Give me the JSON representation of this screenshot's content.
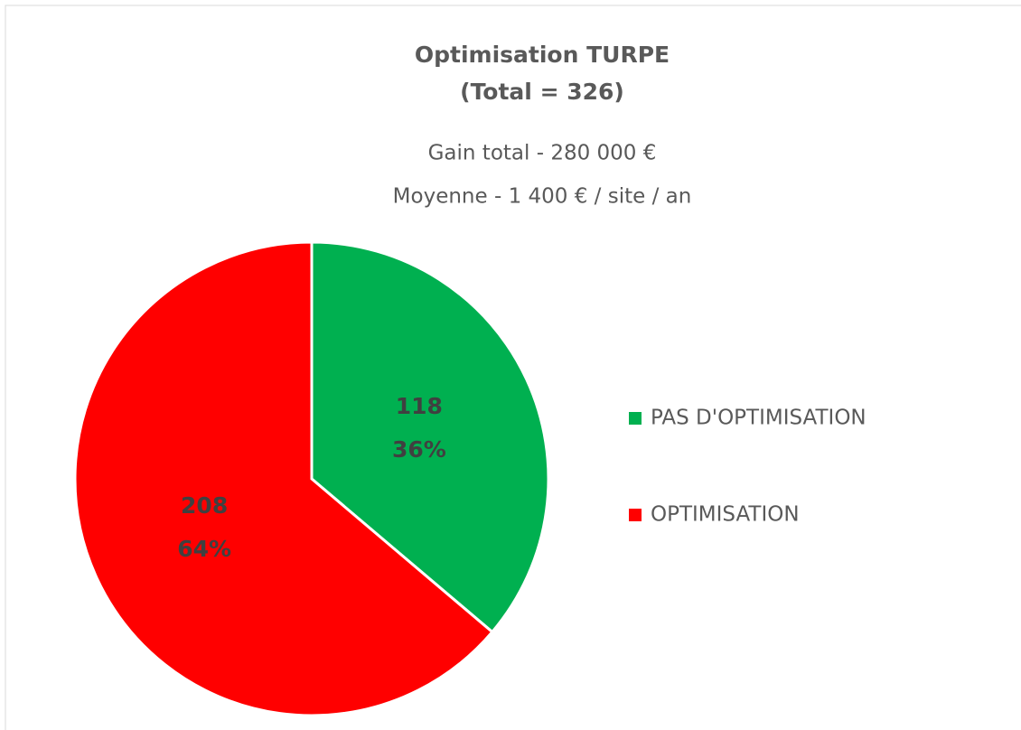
{
  "chart_data": {
    "type": "pie",
    "title": [
      "Optimisation TURPE",
      "(Total = 326)"
    ],
    "subtitle": [
      "Gain total - 280 000 €",
      "Moyenne - 1 400 € / site / an"
    ],
    "categories": [
      "PAS D'OPTIMISATION",
      "OPTIMISATION"
    ],
    "values": [
      118,
      208
    ],
    "percent_labels": [
      "36%",
      "64%"
    ],
    "colors": [
      "#00b050",
      "#ff0000"
    ],
    "legend": "right"
  }
}
